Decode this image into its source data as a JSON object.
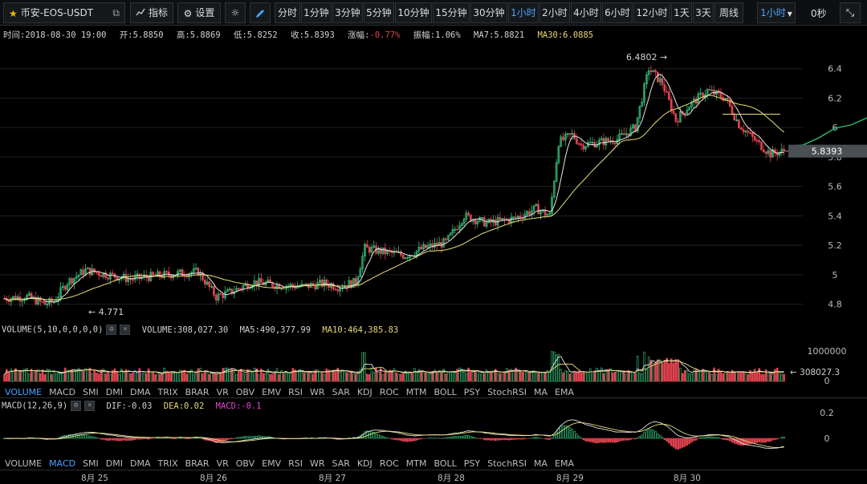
{
  "toolbar": {
    "symbol": "币安-EOS-USDT",
    "indicators_label": "指标",
    "settings_label": "设置",
    "intervals": [
      "分时",
      "1分钟",
      "3分钟",
      "5分钟",
      "10分钟",
      "15分钟",
      "30分钟",
      "1小时",
      "2小时",
      "4小时",
      "6小时",
      "12小时",
      "1天",
      "3天",
      "周线"
    ],
    "active_interval": "1小时",
    "dropdown_label": "1小时",
    "countdown": "0秒"
  },
  "infobar": {
    "time": "时间:2018-08-30 19:00",
    "open": "开:5.8850",
    "high": "高:5.8869",
    "low": "低:5.8252",
    "close": "收:5.8393",
    "change_label": "涨幅:",
    "change_value": "-0.77%",
    "amplitude": "振幅:1.06%",
    "ma7": "MA7:5.8821",
    "ma30": "MA30:6.0885"
  },
  "price_panel": {
    "y_ticks": [
      "6.4",
      "6.2",
      "6",
      "5.8",
      "5.6",
      "5.4",
      "5.2",
      "5",
      "4.8"
    ],
    "high_marker": "6.4802",
    "low_marker": "4.771",
    "current_price": "5.8393",
    "colors": {
      "up": "#36c27d",
      "down": "#e0434f",
      "ma7": "#e6e6e6",
      "ma30": "#e9e07a",
      "depth": "#2fbf71"
    }
  },
  "volume_panel": {
    "params": "VOLUME(5,10,0,0,0,0)",
    "volume": "VOLUME:308,027.30",
    "ma5": "MA5:490,377.99",
    "ma10": "MA10:464,385.83",
    "y_ticks": [
      "1000000",
      "0"
    ],
    "current_volume": "308027.3"
  },
  "macd_panel": {
    "params": "MACD(12,26,9)",
    "dif": "DIF:-0.03",
    "dea": "DEA:0.02",
    "macd": "MACD:-0.1",
    "y_ticks": [
      "0.2",
      "0"
    ]
  },
  "indicator_tabs": [
    "VOLUME",
    "MACD",
    "SMI",
    "DMI",
    "DMA",
    "TRIX",
    "BRAR",
    "VR",
    "OBV",
    "EMV",
    "RSI",
    "WR",
    "SAR",
    "KDJ",
    "ROC",
    "MTM",
    "BOLL",
    "PSY",
    "StochRSI",
    "MA",
    "EMA"
  ],
  "volume_tabs_active": "VOLUME",
  "macd_tabs_active": "MACD",
  "x_axis": [
    "8月 25",
    "8月 26",
    "8月 27",
    "8月 28",
    "8月 29",
    "8月 30"
  ],
  "chart_data": {
    "type": "candlestick",
    "series_name": "EOS/USDT 1h",
    "note_fields": "o,h,l,c per hourly candle (approximate)",
    "ylim": [
      4.7,
      6.55
    ]
  }
}
